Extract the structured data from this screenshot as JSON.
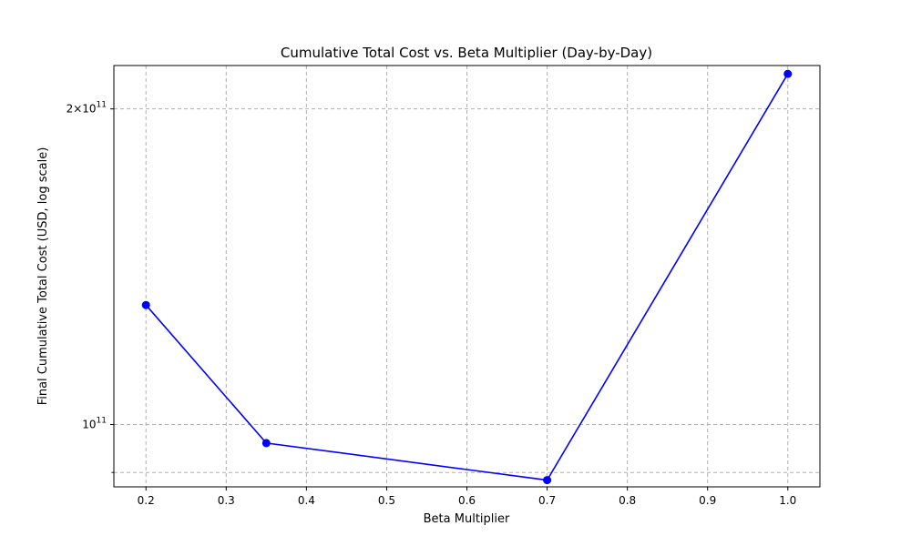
{
  "chart_data": {
    "type": "line",
    "title": "Cumulative Total Cost vs. Beta Multiplier (Day-by-Day)",
    "xlabel": "Beta Multiplier",
    "ylabel": "Final Cumulative Total Cost (USD, log scale)",
    "yscale": "log",
    "xlim": [
      0.16,
      1.04
    ],
    "ylim": [
      87200000000.0,
      220000000000.0
    ],
    "grid": true,
    "x_ticks": [
      {
        "value": 0.2,
        "label": "0.2"
      },
      {
        "value": 0.3,
        "label": "0.3"
      },
      {
        "value": 0.4,
        "label": "0.4"
      },
      {
        "value": 0.5,
        "label": "0.5"
      },
      {
        "value": 0.6,
        "label": "0.6"
      },
      {
        "value": 0.7,
        "label": "0.7"
      },
      {
        "value": 0.8,
        "label": "0.8"
      },
      {
        "value": 0.9,
        "label": "0.9"
      },
      {
        "value": 1.0,
        "label": "1.0"
      }
    ],
    "y_ticks": [
      {
        "value": 100000000000.0,
        "base": "10",
        "exp": "11"
      },
      {
        "value": 200000000000.0,
        "base": "2×10",
        "exp": "11"
      }
    ],
    "y_minor_ticks": [
      90000000000.0
    ],
    "series": [
      {
        "color": "#0000ff",
        "x": [
          0.2,
          0.35,
          0.7,
          1.0
        ],
        "y": [
          130000000000.0,
          96000000000.0,
          88500000000.0,
          216000000000.0
        ]
      }
    ]
  }
}
